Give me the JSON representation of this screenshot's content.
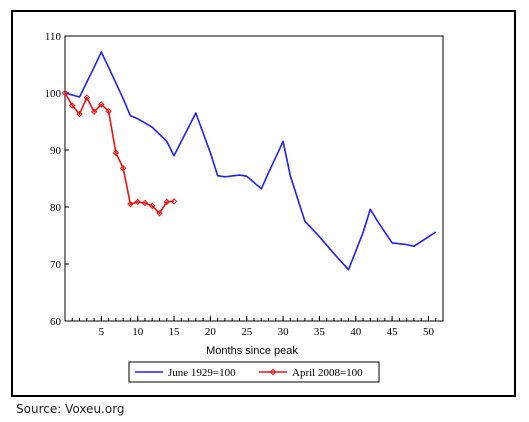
{
  "chart_data": {
    "type": "line",
    "xlabel": "Months since peak",
    "ylabel": "",
    "xlim": [
      0,
      52
    ],
    "ylim": [
      60,
      110
    ],
    "xticks": [
      5,
      10,
      15,
      20,
      25,
      30,
      35,
      40,
      45,
      50
    ],
    "yticks": [
      60,
      70,
      80,
      90,
      100,
      110
    ],
    "grid": false,
    "legend": "bottom",
    "series": [
      {
        "name": "June 1929=100",
        "color": "#1f1fff",
        "markers": false,
        "x": [
          0,
          2,
          4,
          5,
          6,
          8,
          9,
          10,
          12,
          14,
          15,
          16,
          17,
          18,
          20,
          21,
          22,
          24,
          25,
          27,
          28,
          30,
          31,
          33,
          35,
          37,
          39,
          41,
          42,
          43,
          45,
          47,
          48,
          51
        ],
        "y": [
          100,
          99.3,
          104.5,
          107.2,
          104.5,
          99,
          96,
          95.5,
          94,
          91.5,
          89,
          91.5,
          94,
          96.5,
          89.5,
          85.5,
          85.3,
          85.6,
          85.4,
          83.2,
          86,
          91.5,
          85.5,
          77.5,
          74.8,
          71.8,
          69,
          75.5,
          79.6,
          77.5,
          73.7,
          73.4,
          73.1,
          75.6
        ]
      },
      {
        "name": "April 2008=100",
        "color": "#ee1111",
        "markers": true,
        "x": [
          0,
          1,
          2,
          3,
          4,
          5,
          6,
          7,
          8,
          9,
          10,
          11,
          12,
          13,
          14,
          15
        ],
        "y": [
          100,
          97.8,
          96.3,
          99.2,
          96.7,
          98,
          96.8,
          89.5,
          86.8,
          80.5,
          80.9,
          80.7,
          80.2,
          78.9,
          80.9,
          81
        ]
      }
    ]
  },
  "source_text": "Source: Voxeu.org"
}
